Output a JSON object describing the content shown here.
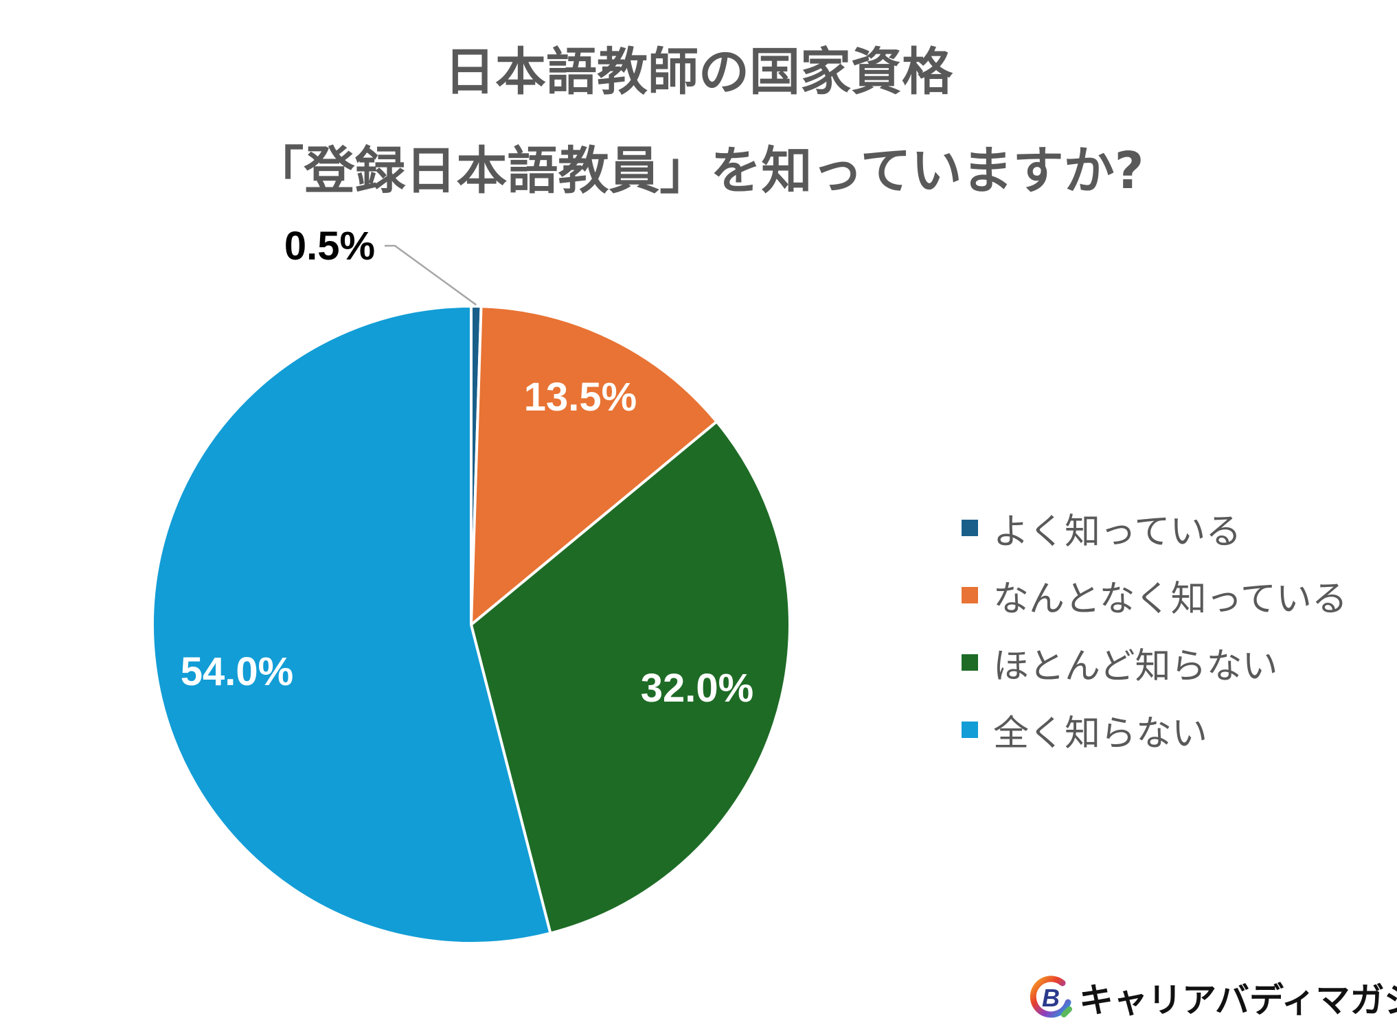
{
  "title": {
    "line1": "日本語教師の国家資格",
    "line2": "「登録日本語教員」を知っていますか?"
  },
  "chart_data": {
    "type": "pie",
    "categories": [
      "よく知っている",
      "なんとなく知っている",
      "ほとんど知らない",
      "全く知らない"
    ],
    "values": [
      0.5,
      13.5,
      32.0,
      54.0
    ],
    "data_labels": [
      "0.5%",
      "13.5%",
      "32.0%",
      "54.0%"
    ],
    "colors": [
      "#1a5f8a",
      "#e87334",
      "#1e6b26",
      "#129dd6"
    ],
    "start_angle_deg": 0,
    "direction": "clockwise",
    "legend_position": "right"
  },
  "brand": {
    "name": "キャリアバディマガジン",
    "logo_letter": "B",
    "logo_icon": "career-buddy-logo-icon"
  }
}
